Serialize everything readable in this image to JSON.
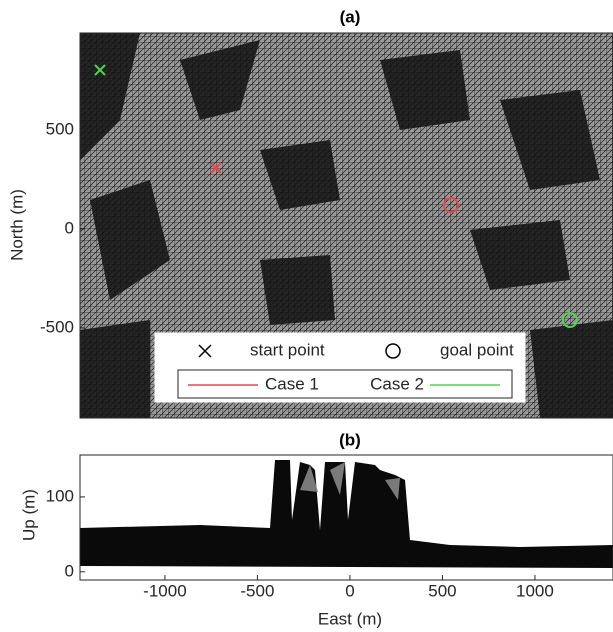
{
  "chart_data": [
    {
      "type": "map",
      "title": "(a)",
      "y_label": "North (m)",
      "xlim": [
        -1459,
        1422
      ],
      "ylim": [
        -955,
        990
      ],
      "yticks": [
        -500,
        0,
        500
      ],
      "legend_entries": [
        "start point",
        "goal point"
      ],
      "series": [
        {
          "name": "Case 1",
          "color": "#e8474b",
          "start": [
            -724,
            308
          ],
          "goal": [
            546,
            121
          ]
        },
        {
          "name": "Case 2",
          "color": "#4cd64c",
          "start": [
            -1351,
            803
          ],
          "goal": [
            1189,
            -460
          ]
        }
      ]
    },
    {
      "type": "profile",
      "title": "(b)",
      "x_label": "East (m)",
      "y_label": "Up (m)",
      "xlim": [
        -1459,
        1422
      ],
      "ylim": [
        -11,
        156
      ],
      "xticks": [
        -1000,
        -500,
        0,
        500,
        1000
      ],
      "yticks": [
        0,
        100
      ]
    }
  ]
}
